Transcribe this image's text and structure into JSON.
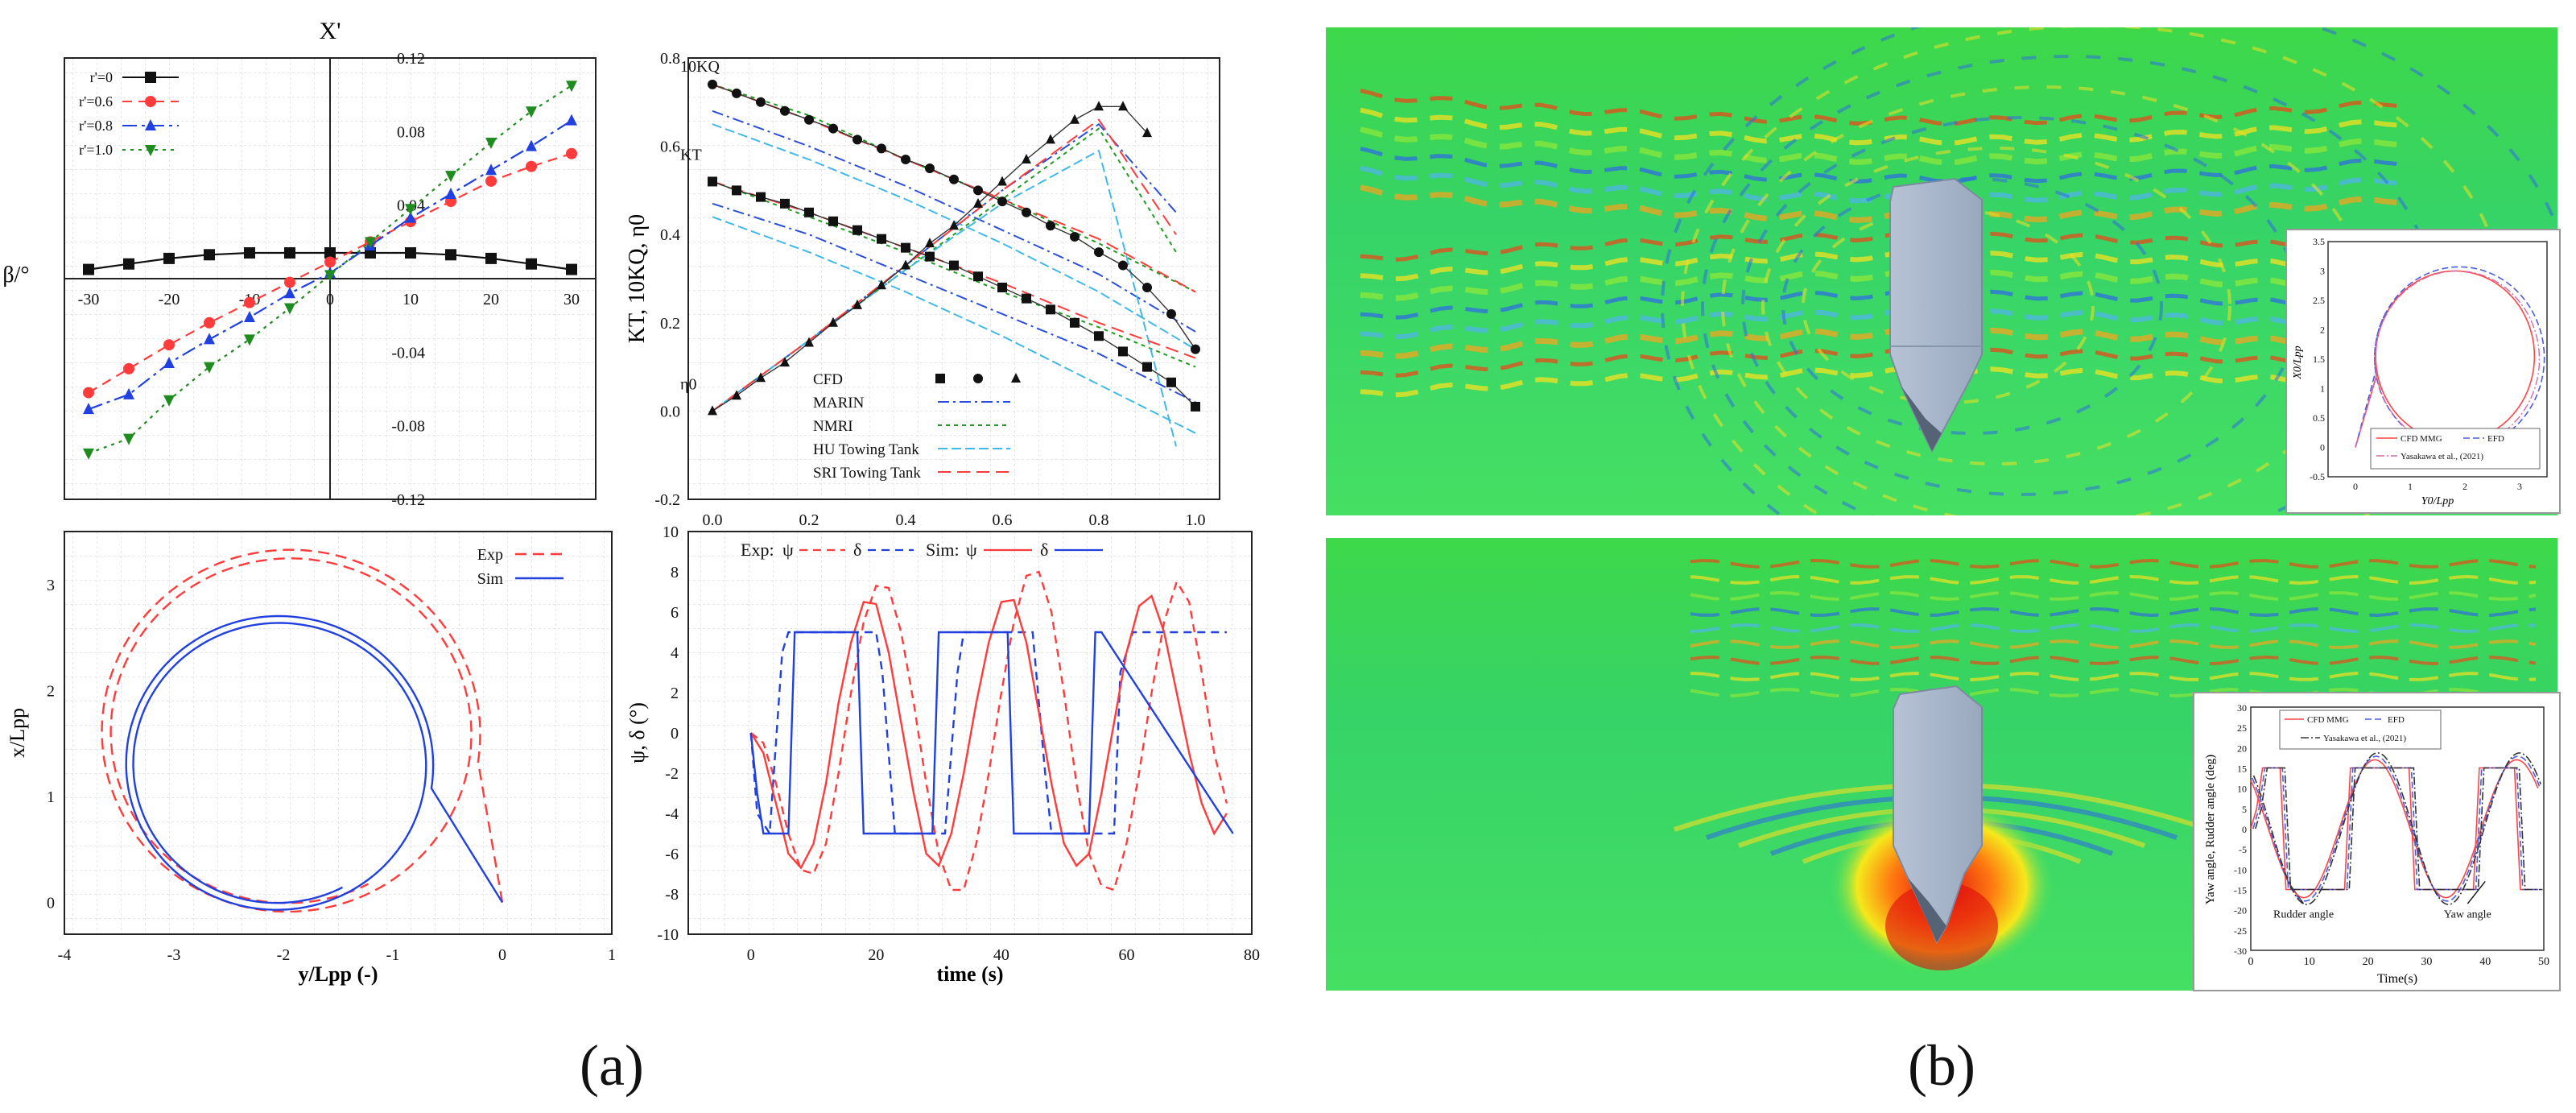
{
  "labels": {
    "a": "(a)",
    "b": "(b)"
  },
  "chart_data": [
    {
      "id": "drift",
      "type": "line",
      "title": "X'",
      "xlabel": "",
      "ylabel": "β/°",
      "xlim": [
        -30,
        30
      ],
      "ylim": [
        -0.12,
        0.12
      ],
      "xticks": [
        "-30",
        "-20",
        "-10",
        "0",
        "10",
        "20",
        "30"
      ],
      "yticks": [
        "-0.12",
        "-0.08",
        "-0.04",
        "0",
        "0.04",
        "0.08",
        "0.12"
      ],
      "grid": true,
      "legend": "top-left",
      "x": [
        -30,
        -25,
        -20,
        -15,
        -10,
        -5,
        0,
        5,
        10,
        15,
        20,
        25,
        30
      ],
      "series": [
        {
          "name": "r'=0",
          "color": "#111111",
          "marker": "square",
          "dash": "",
          "values": [
            0.005,
            0.008,
            0.011,
            0.013,
            0.014,
            0.014,
            0.014,
            0.014,
            0.014,
            0.013,
            0.011,
            0.008,
            0.005
          ]
        },
        {
          "name": "r'=0.6",
          "color": "#ff3b3b",
          "marker": "circle",
          "dash": "12,8",
          "values": [
            -0.062,
            -0.049,
            -0.036,
            -0.024,
            -0.013,
            -0.002,
            0.009,
            0.02,
            0.031,
            0.042,
            0.053,
            0.061,
            0.068
          ]
        },
        {
          "name": "r'=0.8",
          "color": "#2040e0",
          "marker": "triangle",
          "dash": "18,6,4,6",
          "values": [
            -0.071,
            -0.063,
            -0.046,
            -0.033,
            -0.021,
            -0.008,
            0.003,
            0.018,
            0.033,
            0.046,
            0.059,
            0.072,
            0.086
          ]
        },
        {
          "name": "r'=1.0",
          "color": "#1e8c1e",
          "marker": "triangle-down",
          "dash": "4,6",
          "values": [
            -0.095,
            -0.087,
            -0.066,
            -0.048,
            -0.033,
            -0.016,
            0.002,
            0.02,
            0.038,
            0.056,
            0.074,
            0.091,
            0.105
          ]
        }
      ]
    },
    {
      "id": "openwater",
      "type": "line",
      "xlabel": "",
      "ylabel": "KT, 10KQ, η0",
      "xlim": [
        -0.05,
        1.05
      ],
      "ylim": [
        -0.2,
        0.8
      ],
      "xticks": [
        "0.0",
        "0.2",
        "0.4",
        "0.6",
        "0.8",
        "1.0"
      ],
      "yticks": [
        "-0.2",
        "0.0",
        "0.2",
        "0.4",
        "0.6",
        "0.8"
      ],
      "grid": true,
      "annotations": [
        "10KQ",
        "KT",
        "η0"
      ],
      "legend": "bottom-center",
      "markers": {
        "KT": {
          "marker": "square",
          "x": [
            0,
            0.05,
            0.1,
            0.15,
            0.2,
            0.25,
            0.3,
            0.35,
            0.4,
            0.45,
            0.5,
            0.55,
            0.6,
            0.65,
            0.7,
            0.75,
            0.8,
            0.85,
            0.9,
            0.95,
            1.0
          ],
          "y": [
            0.52,
            0.5,
            0.485,
            0.47,
            0.45,
            0.43,
            0.41,
            0.39,
            0.37,
            0.35,
            0.33,
            0.305,
            0.28,
            0.255,
            0.23,
            0.2,
            0.17,
            0.135,
            0.1,
            0.065,
            0.01
          ]
        },
        "10KQ": {
          "marker": "circle",
          "x": [
            0,
            0.05,
            0.1,
            0.15,
            0.2,
            0.25,
            0.3,
            0.35,
            0.4,
            0.45,
            0.5,
            0.55,
            0.6,
            0.65,
            0.7,
            0.75,
            0.8,
            0.85,
            0.9,
            0.95,
            1.0
          ],
          "y": [
            0.74,
            0.72,
            0.7,
            0.68,
            0.66,
            0.64,
            0.615,
            0.595,
            0.57,
            0.55,
            0.525,
            0.5,
            0.475,
            0.45,
            0.42,
            0.395,
            0.36,
            0.33,
            0.28,
            0.22,
            0.14
          ]
        },
        "η0": {
          "marker": "triangle",
          "x": [
            0,
            0.05,
            0.1,
            0.15,
            0.2,
            0.25,
            0.3,
            0.35,
            0.4,
            0.45,
            0.5,
            0.55,
            0.6,
            0.65,
            0.7,
            0.75,
            0.8,
            0.85,
            0.9
          ],
          "y": [
            0,
            0.035,
            0.075,
            0.11,
            0.155,
            0.2,
            0.24,
            0.285,
            0.33,
            0.38,
            0.42,
            0.47,
            0.52,
            0.57,
            0.615,
            0.66,
            0.69,
            0.69,
            0.63
          ]
        }
      },
      "series": [
        {
          "name": "CFD",
          "color": "#111111",
          "dash": "",
          "style": "markers"
        },
        {
          "name": "MARIN",
          "color": "#2b4fd8",
          "dash": "14,5,3,5",
          "kt": [
            0.47,
            0.4,
            0.31,
            0.22,
            0.13,
            0.02
          ],
          "kq": [
            0.68,
            0.6,
            0.51,
            0.41,
            0.31,
            0.18
          ],
          "eta": [
            0,
            0.16,
            0.33,
            0.5,
            0.65,
            0.45
          ]
        },
        {
          "name": "NMRI",
          "color": "#1e9c1e",
          "dash": "5,5",
          "kt": [
            0.52,
            0.44,
            0.36,
            0.27,
            0.19,
            0.1
          ],
          "kq": [
            0.74,
            0.67,
            0.57,
            0.48,
            0.38,
            0.27
          ],
          "eta": [
            0,
            0.16,
            0.32,
            0.48,
            0.64,
            0.36
          ]
        },
        {
          "name": "HU Towing Tank",
          "color": "#40b8e8",
          "dash": "12,5",
          "kt": [
            0.44,
            0.36,
            0.27,
            0.17,
            0.06,
            -0.05
          ],
          "kq": [
            0.65,
            0.57,
            0.48,
            0.38,
            0.27,
            0.14
          ],
          "eta": [
            0,
            0.16,
            0.32,
            0.47,
            0.59,
            -0.08
          ]
        },
        {
          "name": "SRI Towing Tank",
          "color": "#ff3b3b",
          "dash": "16,8",
          "kt": [
            0.52,
            0.45,
            0.37,
            0.29,
            0.2,
            0.12
          ],
          "kq": [
            0.74,
            0.66,
            0.57,
            0.48,
            0.39,
            0.27
          ],
          "eta": [
            0,
            0.16,
            0.33,
            0.5,
            0.66,
            0.4
          ]
        }
      ],
      "x_nodes": [
        0,
        0.2,
        0.4,
        0.6,
        0.8,
        1.0
      ]
    },
    {
      "id": "turning",
      "type": "line",
      "xlabel": "y/Lpp (-)",
      "ylabel": "x/Lpp",
      "xlim": [
        -4,
        1
      ],
      "ylim": [
        -0.3,
        3.5
      ],
      "xticks": [
        "-4",
        "-3",
        "-2",
        "-1",
        "0",
        "1"
      ],
      "yticks": [
        "0",
        "1",
        "2",
        "3"
      ],
      "grid": true,
      "legend": "top-right",
      "series": [
        {
          "name": "Exp",
          "color": "#ff3b3b",
          "dash": "14,8"
        },
        {
          "name": "Sim",
          "color": "#2040e0",
          "dash": ""
        }
      ]
    },
    {
      "id": "zigzag",
      "type": "line",
      "xlabel": "time (s)",
      "ylabel": "ψ, δ (°)",
      "xlim": [
        -10,
        80
      ],
      "ylim": [
        -10,
        10
      ],
      "xticks": [
        "0",
        "20",
        "40",
        "60",
        "80"
      ],
      "yticks": [
        "-10",
        "-8",
        "-6",
        "-4",
        "-2",
        "0",
        "2",
        "4",
        "6",
        "8",
        "10"
      ],
      "grid": true,
      "legend": "top",
      "legend_text": {
        "exp": "Exp:",
        "sim": "Sim:",
        "psi": "ψ",
        "delta": "δ"
      },
      "series": [
        {
          "name": "Exp ψ",
          "color": "#ff3b3b",
          "dash": "10,7",
          "x": [
            0,
            2,
            4,
            6,
            8,
            10,
            12,
            14,
            16,
            18,
            20,
            22,
            24,
            26,
            28,
            30,
            32,
            34,
            36,
            38,
            40,
            42,
            44,
            46,
            48,
            50,
            52,
            54,
            56,
            58,
            60,
            62,
            64,
            66,
            68,
            70,
            72,
            74,
            76
          ],
          "values": [
            0,
            -0.5,
            -2.5,
            -5,
            -6.8,
            -7,
            -5.5,
            -2,
            2,
            5.5,
            7.3,
            7.2,
            5,
            1.5,
            -2.5,
            -6,
            -7.8,
            -7.8,
            -5.5,
            -2,
            2,
            5.5,
            7.8,
            8,
            6,
            2,
            -2.5,
            -6,
            -7.6,
            -7.8,
            -5.5,
            -2,
            2,
            5.5,
            7.5,
            6.5,
            3,
            -1,
            -3.5
          ]
        },
        {
          "name": "Exp δ",
          "color": "#2040e0",
          "dash": "10,7",
          "x": [
            0,
            1,
            3,
            5,
            6,
            20,
            21,
            23,
            31,
            33,
            34,
            35,
            45,
            47,
            48,
            49,
            58,
            59,
            61,
            65,
            67,
            76
          ],
          "values": [
            0,
            -4,
            -5,
            4,
            5,
            5,
            3,
            -5,
            -5,
            3,
            5,
            5,
            5,
            -2,
            -5,
            -5,
            -5,
            3,
            5,
            5,
            5,
            5
          ]
        },
        {
          "name": "Sim ψ",
          "color": "#ff3b3b",
          "dash": "",
          "x": [
            0,
            2,
            4,
            6,
            8,
            10,
            12,
            14,
            16,
            18,
            20,
            22,
            24,
            26,
            28,
            30,
            32,
            34,
            36,
            38,
            40,
            42,
            44,
            46,
            48,
            50,
            52,
            54,
            56,
            58,
            60,
            62,
            64,
            66,
            68,
            70,
            72,
            74,
            76
          ],
          "values": [
            0,
            -1,
            -3.5,
            -6,
            -6.7,
            -5.5,
            -2.5,
            1.5,
            4.5,
            6.5,
            6.4,
            4,
            0.5,
            -3,
            -6,
            -6.6,
            -5,
            -2,
            1.5,
            4.5,
            6.5,
            6.6,
            4.5,
            1,
            -2.5,
            -5.5,
            -6.6,
            -6,
            -3,
            0.5,
            4,
            6.3,
            6.8,
            5,
            2,
            -1,
            -3.5,
            -5,
            -4
          ]
        },
        {
          "name": "Sim δ",
          "color": "#2040e0",
          "dash": "",
          "x": [
            0,
            1,
            2,
            6,
            7,
            17,
            18,
            19,
            29,
            30,
            31,
            41,
            42,
            43,
            54,
            55,
            56,
            77
          ],
          "values": [
            0,
            -3,
            -5,
            -5,
            5,
            5,
            -5,
            -5,
            -5,
            5,
            5,
            5,
            -5,
            -5,
            -5,
            5,
            5,
            -5
          ]
        }
      ]
    },
    {
      "id": "inset_turning",
      "type": "line",
      "xlabel": "Y0/Lpp",
      "ylabel": "X0/Lpp",
      "xlim": [
        -0.5,
        3.5
      ],
      "ylim": [
        -0.5,
        3.5
      ],
      "xticks": [
        "0",
        "1",
        "2",
        "3"
      ],
      "yticks": [
        "-0.5",
        "0",
        "0.5",
        "1",
        "1.5",
        "2",
        "2.5",
        "3",
        "3.5"
      ],
      "legend": "bottom",
      "series": [
        {
          "name": "CFD MMG",
          "color": "#ff4444",
          "dash": ""
        },
        {
          "name": "EFD",
          "color": "#4a5de0",
          "dash": "8,4"
        },
        {
          "name": "Yasakawa et al., (2021)",
          "color": "#d26aa8",
          "dash": "10,3,2,3"
        }
      ]
    },
    {
      "id": "inset_zigzag",
      "type": "line",
      "xlabel": "Time(s)",
      "ylabel": "Yaw angle, Rudder angle (deg)",
      "xlim": [
        0,
        50
      ],
      "ylim": [
        -30,
        30
      ],
      "xticks": [
        "0",
        "10",
        "20",
        "30",
        "40",
        "50"
      ],
      "yticks": [
        "-30",
        "-25",
        "-20",
        "-15",
        "-10",
        "-5",
        "0",
        "5",
        "10",
        "15",
        "20",
        "25",
        "30"
      ],
      "legend": "top",
      "annotations": [
        "Rudder angle",
        "Yaw angle"
      ],
      "series": [
        {
          "name": "CFD MMG",
          "color": "#ff4444",
          "dash": ""
        },
        {
          "name": "EFD",
          "color": "#4a5de0",
          "dash": "8,4"
        },
        {
          "name": "Yasakawa et al., (2021)",
          "color": "#333333",
          "dash": "10,3,2,3"
        }
      ]
    }
  ]
}
